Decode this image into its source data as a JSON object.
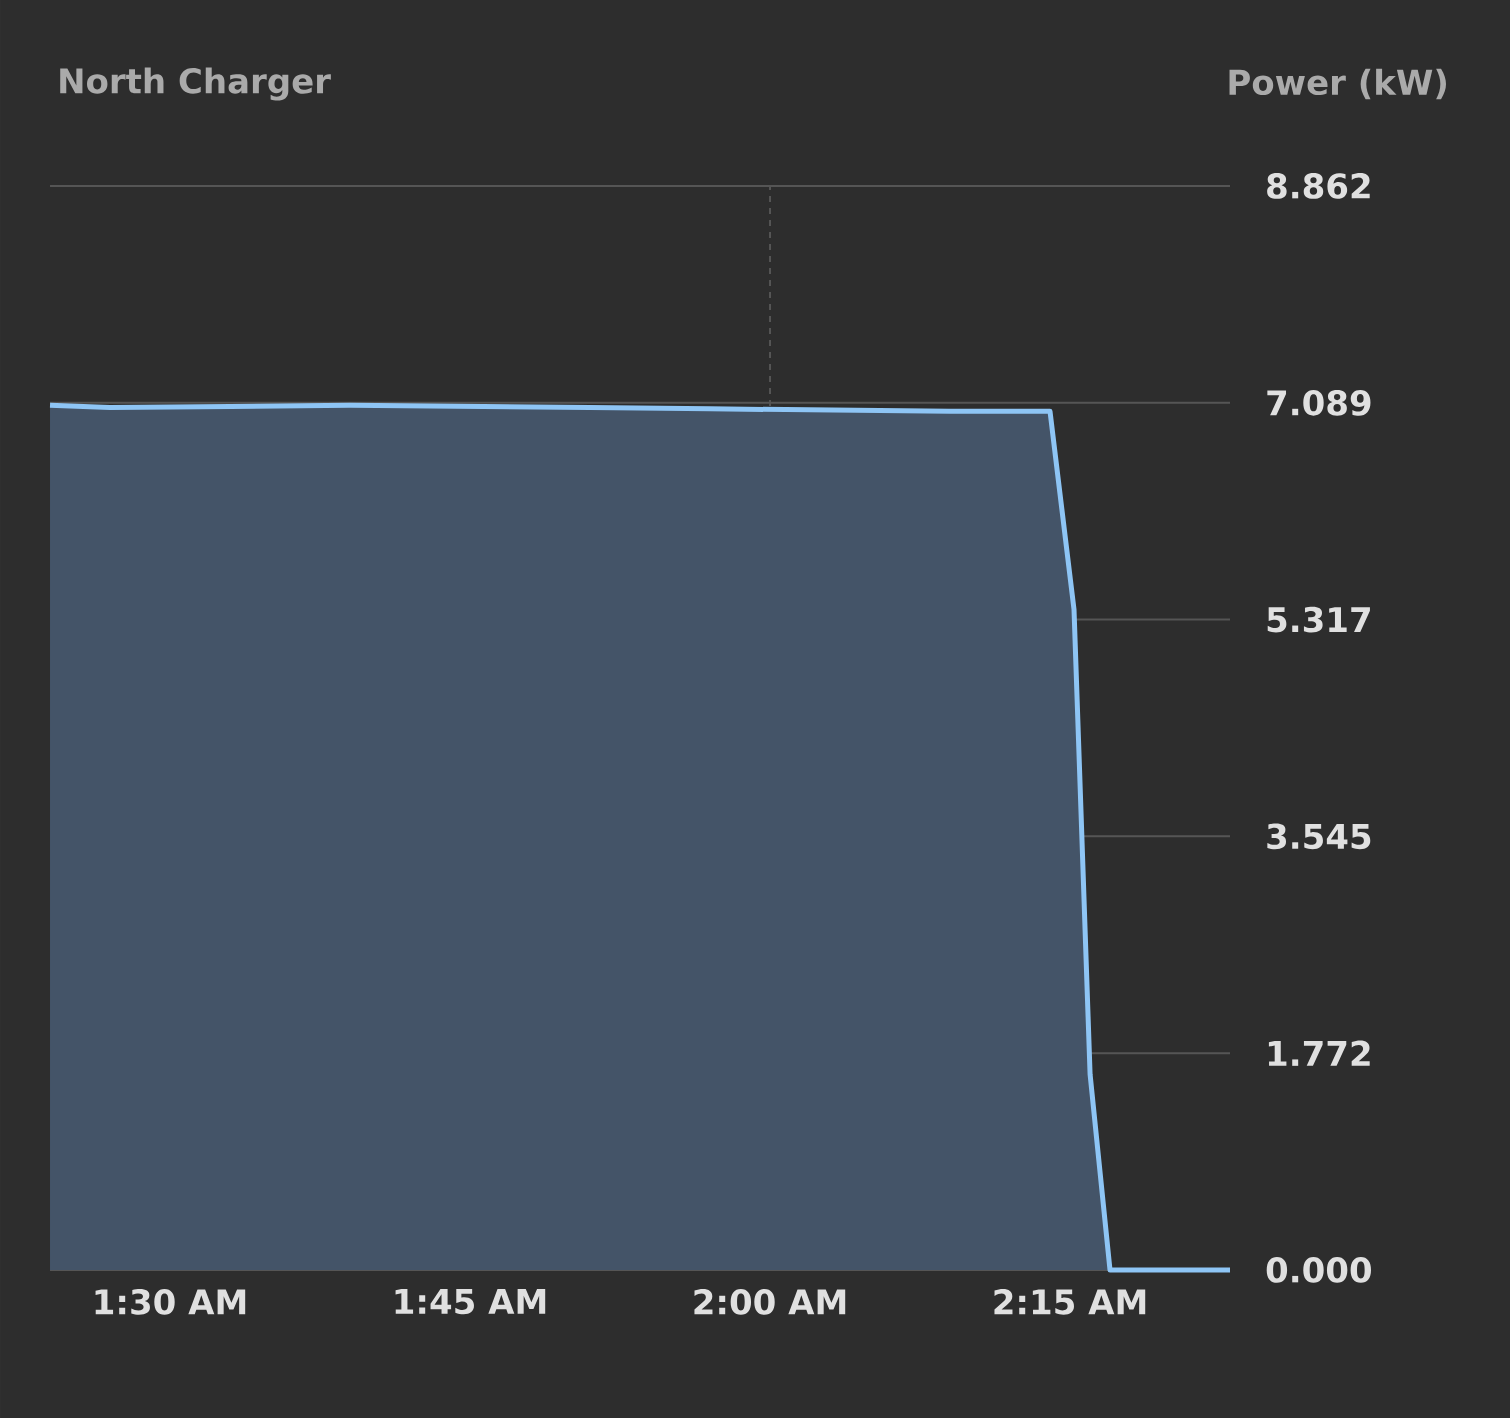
{
  "chart_data": {
    "type": "area",
    "title": "North Charger",
    "ylabel": "Power (kW)",
    "x": [
      1.4,
      1.45,
      1.55,
      1.65,
      1.75,
      1.85,
      1.95,
      2.05,
      2.15,
      2.2333,
      2.2533,
      2.2667,
      2.2833,
      2.3833
    ],
    "series": [
      {
        "color": "#8ec5f5",
        "values": [
          7.07,
          7.05,
          7.06,
          7.07,
          7.06,
          7.05,
          7.04,
          7.03,
          7.02,
          7.02,
          5.4,
          1.6,
          0,
          0
        ]
      }
    ],
    "xlim": [
      1.4,
      2.3833
    ],
    "xticks": [
      {
        "value": 1.5,
        "label": "1:30 AM"
      },
      {
        "value": 1.75,
        "label": "1:45 AM"
      },
      {
        "value": 2.0,
        "label": "2:00 AM"
      },
      {
        "value": 2.25,
        "label": "2:15 AM"
      }
    ],
    "ylim": [
      0,
      8.862
    ],
    "yticks": [
      {
        "value": 0,
        "label": "0.000"
      },
      {
        "value": 1.772,
        "label": "1.772"
      },
      {
        "value": 3.545,
        "label": "3.545"
      },
      {
        "value": 5.317,
        "label": "5.317"
      },
      {
        "value": 7.089,
        "label": "7.089"
      },
      {
        "value": 8.862,
        "label": "8.862"
      }
    ],
    "grid": "y",
    "ref_lines": [
      {
        "axis": "x",
        "value": 2.0,
        "line_style": "dashed"
      }
    ]
  }
}
